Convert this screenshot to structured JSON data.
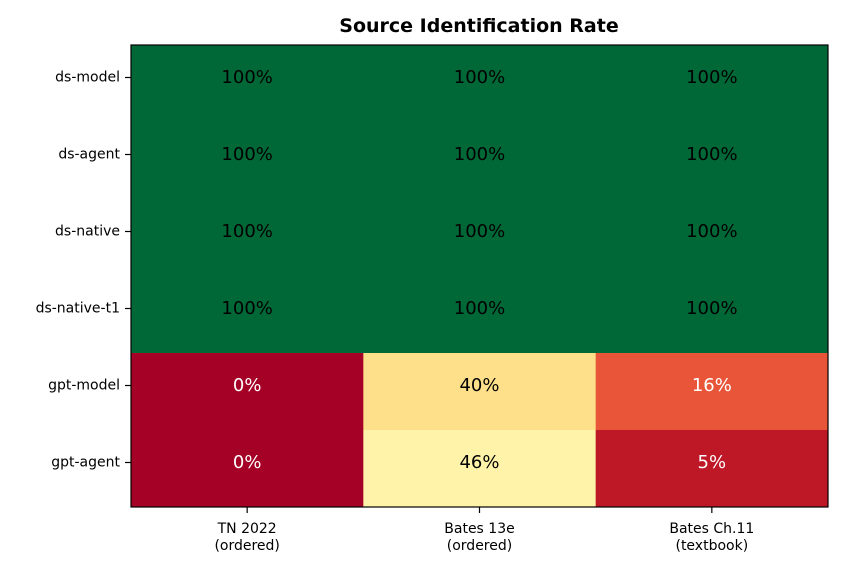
{
  "chart_data": {
    "type": "heatmap",
    "title": "Source Identification Rate",
    "xlabel": "",
    "ylabel": "",
    "rows": [
      "ds-model",
      "ds-agent",
      "ds-native",
      "ds-native-t1",
      "gpt-model",
      "gpt-agent"
    ],
    "columns": [
      [
        "TN 2022",
        "(ordered)"
      ],
      [
        "Bates 13e",
        "(ordered)"
      ],
      [
        "Bates Ch.11",
        "(textbook)"
      ]
    ],
    "values": [
      [
        100,
        100,
        100
      ],
      [
        100,
        100,
        100
      ],
      [
        100,
        100,
        100
      ],
      [
        100,
        100,
        100
      ],
      [
        0,
        40,
        16
      ],
      [
        0,
        46,
        5
      ]
    ],
    "value_format": "percent",
    "vmin": 0,
    "vmax": 100,
    "colormap": "RdYlGn",
    "grid": false,
    "legend": "none"
  }
}
